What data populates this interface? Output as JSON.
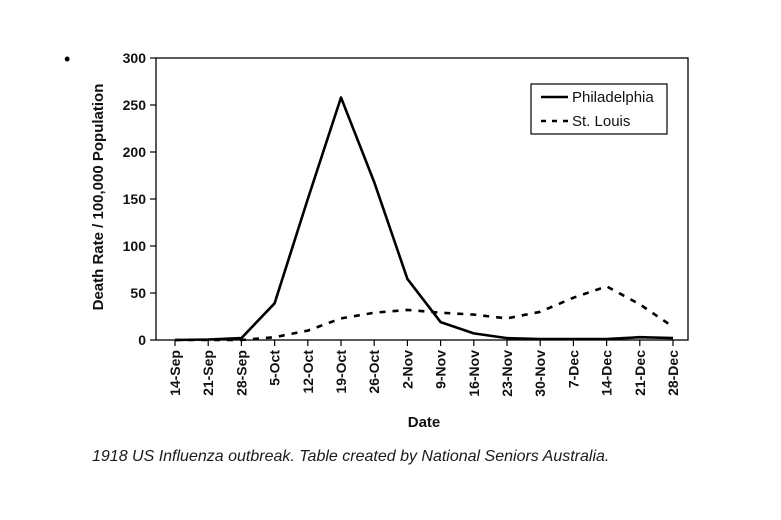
{
  "bullet": "•",
  "caption": "1918 US Influenza outbreak. Table created by National Seniors Australia.",
  "chart_data": {
    "type": "line",
    "xlabel": "Date",
    "ylabel": "Death Rate / 100,000 Population",
    "ylim": [
      0,
      300
    ],
    "yticks": [
      "0",
      "50",
      "100",
      "150",
      "200",
      "250",
      "300"
    ],
    "categories": [
      "14-Sep",
      "21-Sep",
      "28-Sep",
      "5-Oct",
      "12-Oct",
      "19-Oct",
      "26-Oct",
      "2-Nov",
      "9-Nov",
      "16-Nov",
      "23-Nov",
      "30-Nov",
      "7-Dec",
      "14-Dec",
      "21-Dec",
      "28-Dec"
    ],
    "legend_position": "top-right",
    "grid": false,
    "series": [
      {
        "name": "Philadelphia",
        "style": "solid",
        "color": "#000000",
        "values": [
          0,
          0.5,
          2,
          39,
          150,
          258,
          168,
          65,
          19,
          7,
          2,
          1,
          1,
          1,
          3,
          2
        ]
      },
      {
        "name": "St. Louis",
        "style": "dashed",
        "color": "#000000",
        "values": [
          0,
          0,
          0,
          3,
          10,
          23,
          29,
          32,
          29,
          27,
          23,
          30,
          45,
          57,
          38,
          14
        ]
      }
    ]
  }
}
